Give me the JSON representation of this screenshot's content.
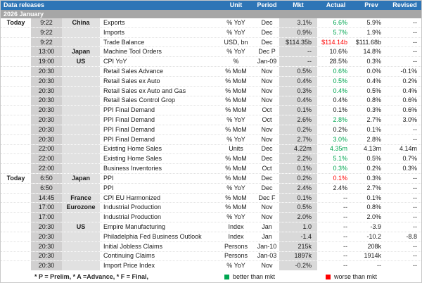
{
  "header": {
    "title": "Data releases",
    "month": "2026 January",
    "columns": [
      "Unit",
      "Period",
      "Mkt",
      "Actual",
      "Prev",
      "Revised"
    ]
  },
  "colors": {
    "header_bg": "#2E75B6",
    "month_bg": "#A6A6A6",
    "better": "#00A651",
    "worse": "#FF0000"
  },
  "rows": [
    {
      "day": "Today",
      "time": "9:22",
      "country": "China",
      "indicator": "Exports",
      "unit": "% YoY",
      "period": "Dec",
      "mkt": "3.1%",
      "actual": "6.6%",
      "actual_status": "better",
      "prev": "5.9%",
      "revised": "--"
    },
    {
      "day": "",
      "time": "9:22",
      "country": "",
      "indicator": "Imports",
      "unit": "% YoY",
      "period": "Dec",
      "mkt": "0.9%",
      "actual": "5.7%",
      "actual_status": "better",
      "prev": "1.9%",
      "revised": "--"
    },
    {
      "day": "",
      "time": "9:22",
      "country": "",
      "indicator": "Trade Balance",
      "unit": "USD, bn",
      "period": "Dec",
      "mkt": "$114.35b",
      "actual": "$114.14b",
      "actual_status": "worse",
      "prev": "$111.68b",
      "revised": "--"
    },
    {
      "day": "",
      "time": "13:00",
      "country": "Japan",
      "indicator": "Machine Tool Orders",
      "unit": "% YoY",
      "period": "Dec P",
      "mkt": "--",
      "actual": "10.6%",
      "actual_status": "neutral",
      "prev": "14.8%",
      "revised": "--"
    },
    {
      "day": "",
      "time": "19:00",
      "country": "US",
      "indicator": "CPI YoY",
      "unit": "%",
      "period": "Jan-09",
      "mkt": "--",
      "actual": "28.5%",
      "actual_status": "neutral",
      "prev": "0.3%",
      "revised": "--"
    },
    {
      "day": "",
      "time": "20:30",
      "country": "",
      "indicator": "Retail Sales Advance",
      "unit": "% MoM",
      "period": "Nov",
      "mkt": "0.5%",
      "actual": "0.6%",
      "actual_status": "better",
      "prev": "0.0%",
      "revised": "-0.1%"
    },
    {
      "day": "",
      "time": "20:30",
      "country": "",
      "indicator": "Retail Sales ex Auto",
      "unit": "% MoM",
      "period": "Nov",
      "mkt": "0.4%",
      "actual": "0.5%",
      "actual_status": "better",
      "prev": "0.4%",
      "revised": "0.2%"
    },
    {
      "day": "",
      "time": "20:30",
      "country": "",
      "indicator": "Retail Sales ex Auto and Gas",
      "unit": "% MoM",
      "period": "Nov",
      "mkt": "0.3%",
      "actual": "0.4%",
      "actual_status": "better",
      "prev": "0.5%",
      "revised": "0.4%"
    },
    {
      "day": "",
      "time": "20:30",
      "country": "",
      "indicator": "Retail Sales Control Grop",
      "unit": "% MoM",
      "period": "Nov",
      "mkt": "0.4%",
      "actual": "0.4%",
      "actual_status": "neutral",
      "prev": "0.8%",
      "revised": "0.6%"
    },
    {
      "day": "",
      "time": "20:30",
      "country": "",
      "indicator": "PPI Final Demand",
      "unit": "% MoM",
      "period": "Oct",
      "mkt": "0.1%",
      "actual": "0.1%",
      "actual_status": "neutral",
      "prev": "0.3%",
      "revised": "0.6%"
    },
    {
      "day": "",
      "time": "20:30",
      "country": "",
      "indicator": "PPI Final Demand",
      "unit": "% YoY",
      "period": "Oct",
      "mkt": "2.6%",
      "actual": "2.8%",
      "actual_status": "better",
      "prev": "2.7%",
      "revised": "3.0%"
    },
    {
      "day": "",
      "time": "20:30",
      "country": "",
      "indicator": "PPI Final Demand",
      "unit": "% MoM",
      "period": "Nov",
      "mkt": "0.2%",
      "actual": "0.2%",
      "actual_status": "neutral",
      "prev": "0.1%",
      "revised": "--"
    },
    {
      "day": "",
      "time": "20:30",
      "country": "",
      "indicator": "PPI Final Demand",
      "unit": "% YoY",
      "period": "Nov",
      "mkt": "2.7%",
      "actual": "3.0%",
      "actual_status": "better",
      "prev": "2.8%",
      "revised": "--"
    },
    {
      "day": "",
      "time": "22:00",
      "country": "",
      "indicator": "Existing Home Sales",
      "unit": "Units",
      "period": "Dec",
      "mkt": "4.22m",
      "actual": "4.35m",
      "actual_status": "better",
      "prev": "4.13m",
      "revised": "4.14m"
    },
    {
      "day": "",
      "time": "22:00",
      "country": "",
      "indicator": "Existing Home Sales",
      "unit": "% MoM",
      "period": "Dec",
      "mkt": "2.2%",
      "actual": "5.1%",
      "actual_status": "better",
      "prev": "0.5%",
      "revised": "0.7%"
    },
    {
      "day": "",
      "time": "22:00",
      "country": "",
      "indicator": "Business Inventories",
      "unit": "% MoM",
      "period": "Oct",
      "mkt": "0.1%",
      "actual": "0.3%",
      "actual_status": "better",
      "prev": "0.2%",
      "revised": "0.3%"
    },
    {
      "day": "Today",
      "time": "6:50",
      "country": "Japan",
      "indicator": "PPI",
      "unit": "% MoM",
      "period": "Dec",
      "mkt": "0.2%",
      "actual": "0.1%",
      "actual_status": "worse",
      "prev": "0.3%",
      "revised": "--"
    },
    {
      "day": "",
      "time": "6:50",
      "country": "",
      "indicator": "PPI",
      "unit": "% YoY",
      "period": "Dec",
      "mkt": "2.4%",
      "actual": "2.4%",
      "actual_status": "neutral",
      "prev": "2.7%",
      "revised": "--"
    },
    {
      "day": "",
      "time": "14:45",
      "country": "France",
      "indicator": "CPI EU Harmonized",
      "unit": "% MoM",
      "period": "Dec F",
      "mkt": "0.1%",
      "actual": "--",
      "actual_status": "neutral",
      "prev": "0.1%",
      "revised": "--"
    },
    {
      "day": "",
      "time": "17:00",
      "country": "Eurozone",
      "indicator": "Industrial Production",
      "unit": "% MoM",
      "period": "Nov",
      "mkt": "0.5%",
      "actual": "--",
      "actual_status": "neutral",
      "prev": "0.8%",
      "revised": "--"
    },
    {
      "day": "",
      "time": "17:00",
      "country": "",
      "indicator": "Industrial Production",
      "unit": "% YoY",
      "period": "Nov",
      "mkt": "2.0%",
      "actual": "--",
      "actual_status": "neutral",
      "prev": "2.0%",
      "revised": "--"
    },
    {
      "day": "",
      "time": "20:30",
      "country": "US",
      "indicator": "Empire Manufacturing",
      "unit": "Index",
      "period": "Jan",
      "mkt": "1.0",
      "actual": "--",
      "actual_status": "neutral",
      "prev": "-3.9",
      "revised": "--"
    },
    {
      "day": "",
      "time": "20:30",
      "country": "",
      "indicator": "Philadelphia Fed Business Outlook",
      "unit": "Index",
      "period": "Jan",
      "mkt": "-1.4",
      "actual": "--",
      "actual_status": "neutral",
      "prev": "-10.2",
      "revised": "-8.8"
    },
    {
      "day": "",
      "time": "20:30",
      "country": "",
      "indicator": "Initial Jobless Claims",
      "unit": "Persons",
      "period": "Jan-10",
      "mkt": "215k",
      "actual": "--",
      "actual_status": "neutral",
      "prev": "208k",
      "revised": "--"
    },
    {
      "day": "",
      "time": "20:30",
      "country": "",
      "indicator": "Continuing Claims",
      "unit": "Persons",
      "period": "Jan-03",
      "mkt": "1897k",
      "actual": "--",
      "actual_status": "neutral",
      "prev": "1914k",
      "revised": "--"
    },
    {
      "day": "",
      "time": "20:30",
      "country": "",
      "indicator": "Import Price Index",
      "unit": "% YoY",
      "period": "Nov",
      "mkt": "-0.2%",
      "actual": "--",
      "actual_status": "neutral",
      "prev": "--",
      "revised": "--"
    }
  ],
  "footer": {
    "footnote": "* P = Prelim, * A =Advance, * F = Final,",
    "legend": [
      {
        "label": "better than mkt",
        "color": "#00A651"
      },
      {
        "label": "worse than mkt",
        "color": "#FF0000"
      }
    ]
  }
}
